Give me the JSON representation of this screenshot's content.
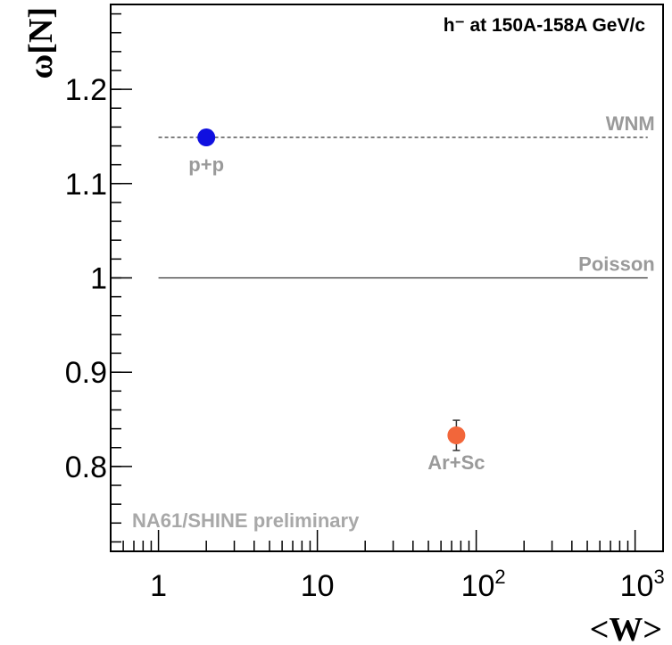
{
  "chart_data": {
    "type": "scatter",
    "title": "h⁻ at 150A-158A GeV/c",
    "xlabel": "<W>",
    "ylabel": "ω[N]",
    "x_scale": "log",
    "xlim": [
      0.5,
      1500
    ],
    "ylim": [
      0.71,
      1.29
    ],
    "x_ticks": [
      {
        "value": 1,
        "base": "1",
        "exp": ""
      },
      {
        "value": 10,
        "base": "10",
        "exp": ""
      },
      {
        "value": 100,
        "base": "10",
        "exp": "2"
      },
      {
        "value": 1000,
        "base": "10",
        "exp": "3"
      }
    ],
    "y_ticks": [
      {
        "value": 0.8,
        "label": "0.8"
      },
      {
        "value": 0.9,
        "label": "0.9"
      },
      {
        "value": 1.0,
        "label": "1"
      },
      {
        "value": 1.1,
        "label": "1.1"
      },
      {
        "value": 1.2,
        "label": "1.2"
      }
    ],
    "points": [
      {
        "label": "p+p",
        "x": 2,
        "y": 1.149,
        "err": 0.004,
        "color": "#1010e0"
      },
      {
        "label": "Ar+Sc",
        "x": 75,
        "y": 0.833,
        "err": 0.016,
        "color": "#f2663a"
      }
    ],
    "reference_lines": [
      {
        "label": "WNM",
        "y": 1.149,
        "x_from": 1,
        "x_to": 1200,
        "style": "dashed",
        "color": "#333333"
      },
      {
        "label": "Poisson",
        "y": 1.0,
        "x_from": 1,
        "x_to": 1200,
        "style": "solid",
        "color": "#333333"
      }
    ],
    "annotation": "NA61/SHINE preliminary",
    "grid": false,
    "legend": "none"
  }
}
